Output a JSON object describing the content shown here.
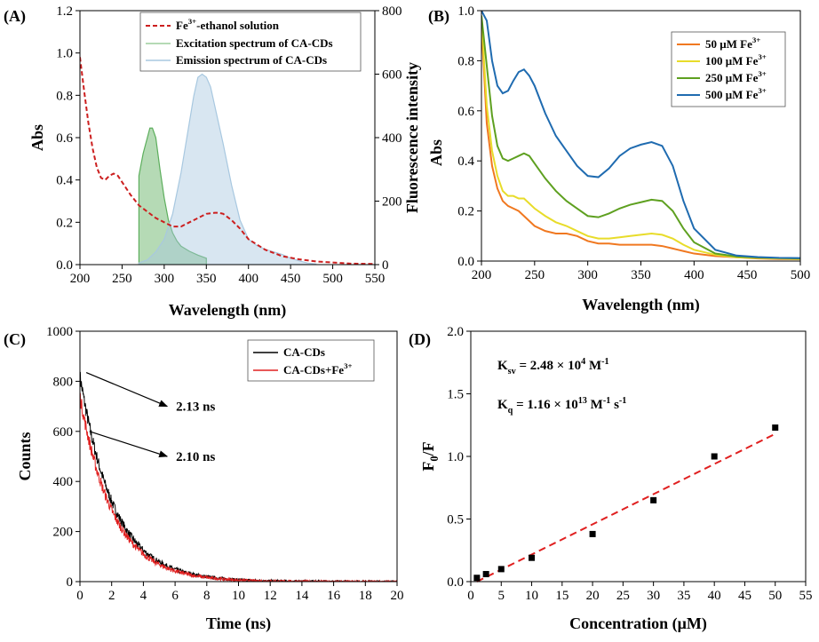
{
  "chart_data": [
    {
      "panel": "(A)",
      "type": "line",
      "xlabel": "Wavelength (nm)",
      "ylabel": "Abs",
      "y2label": "Fluorescence intensity",
      "xlim": [
        200,
        550
      ],
      "ylim": [
        0,
        1.2
      ],
      "y2lim": [
        0,
        800
      ],
      "xticks": [
        "200",
        "250",
        "300",
        "350",
        "400",
        "450",
        "500",
        "550"
      ],
      "yticks": [
        "0.0",
        "0.2",
        "0.4",
        "0.6",
        "0.8",
        "1.0",
        "1.2"
      ],
      "y2ticks": [
        "0",
        "200",
        "400",
        "600",
        "800"
      ],
      "legend_position": "top-right",
      "legend": [
        "Fe",
        "3+",
        "-ethanol solution",
        "Excitation spectrum of CA-CDs",
        "Emission spectrum of CA-CDs"
      ],
      "series": [
        {
          "axis": "left",
          "style": "dashed",
          "color": "#cc1f1f",
          "x": [
            200,
            205,
            210,
            215,
            220,
            225,
            230,
            235,
            240,
            245,
            250,
            255,
            260,
            270,
            280,
            290,
            300,
            310,
            320,
            330,
            340,
            350,
            360,
            365,
            370,
            380,
            390,
            400,
            420,
            440,
            460,
            480,
            500,
            520,
            550
          ],
          "y": [
            0.98,
            0.82,
            0.67,
            0.55,
            0.46,
            0.41,
            0.4,
            0.42,
            0.43,
            0.42,
            0.39,
            0.36,
            0.33,
            0.28,
            0.25,
            0.22,
            0.2,
            0.18,
            0.18,
            0.2,
            0.22,
            0.24,
            0.245,
            0.245,
            0.24,
            0.21,
            0.17,
            0.12,
            0.07,
            0.04,
            0.025,
            0.015,
            0.01,
            0.005,
            0.003
          ]
        },
        {
          "axis": "right",
          "style": "filled",
          "color": "#5cae5c",
          "x": [
            270,
            275,
            280,
            283,
            286,
            290,
            295,
            300,
            305,
            310,
            315,
            320,
            325,
            330,
            340,
            350
          ],
          "y": [
            280,
            350,
            400,
            430,
            430,
            400,
            300,
            210,
            140,
            100,
            75,
            58,
            50,
            42,
            30,
            20
          ]
        },
        {
          "axis": "right",
          "style": "filled",
          "color": "#a8c8e0",
          "x": [
            270,
            280,
            290,
            300,
            310,
            320,
            330,
            335,
            340,
            345,
            350,
            355,
            360,
            370,
            380,
            390,
            400,
            410,
            420,
            430,
            440,
            450,
            460,
            470,
            480
          ],
          "y": [
            5,
            15,
            40,
            80,
            160,
            290,
            450,
            530,
            590,
            600,
            590,
            560,
            500,
            380,
            250,
            140,
            80,
            60,
            48,
            40,
            32,
            20,
            12,
            5,
            2
          ]
        }
      ]
    },
    {
      "panel": "(B)",
      "type": "line",
      "xlabel": "Wavelength (nm)",
      "ylabel": "Abs",
      "xlim": [
        200,
        500
      ],
      "ylim": [
        0,
        1.0
      ],
      "xticks": [
        "200",
        "250",
        "300",
        "350",
        "400",
        "450",
        "500"
      ],
      "yticks": [
        "0.0",
        "0.2",
        "0.4",
        "0.6",
        "0.8",
        "1.0"
      ],
      "legend_position": "top-right",
      "x": [
        200,
        205,
        210,
        215,
        220,
        225,
        230,
        235,
        240,
        245,
        250,
        260,
        270,
        280,
        290,
        300,
        310,
        320,
        330,
        340,
        350,
        360,
        370,
        380,
        390,
        400,
        420,
        440,
        460,
        480,
        500
      ],
      "series": [
        {
          "name": "50 μM Fe",
          "sup": "3+",
          "color": "#f07820",
          "y": [
            0.95,
            0.55,
            0.38,
            0.29,
            0.24,
            0.22,
            0.21,
            0.2,
            0.18,
            0.16,
            0.14,
            0.12,
            0.11,
            0.11,
            0.1,
            0.08,
            0.07,
            0.07,
            0.065,
            0.065,
            0.065,
            0.065,
            0.06,
            0.05,
            0.04,
            0.03,
            0.02,
            0.015,
            0.01,
            0.008,
            0.007
          ]
        },
        {
          "name": "100 μM Fe",
          "sup": "3+",
          "color": "#e8dc2a",
          "y": [
            0.97,
            0.62,
            0.44,
            0.34,
            0.28,
            0.26,
            0.26,
            0.25,
            0.25,
            0.23,
            0.21,
            0.18,
            0.155,
            0.14,
            0.12,
            0.1,
            0.09,
            0.09,
            0.095,
            0.1,
            0.105,
            0.11,
            0.105,
            0.09,
            0.065,
            0.045,
            0.025,
            0.015,
            0.012,
            0.01,
            0.008
          ]
        },
        {
          "name": "250 μM Fe",
          "sup": "3+",
          "color": "#5ea020",
          "y": [
            0.98,
            0.78,
            0.58,
            0.46,
            0.41,
            0.4,
            0.41,
            0.42,
            0.43,
            0.42,
            0.39,
            0.33,
            0.28,
            0.24,
            0.21,
            0.18,
            0.175,
            0.19,
            0.21,
            0.225,
            0.235,
            0.245,
            0.24,
            0.2,
            0.13,
            0.075,
            0.03,
            0.018,
            0.014,
            0.012,
            0.01
          ]
        },
        {
          "name": "500 μM Fe",
          "sup": "3+",
          "color": "#1f6bb0",
          "y": [
            1.0,
            0.96,
            0.8,
            0.7,
            0.67,
            0.68,
            0.72,
            0.755,
            0.765,
            0.74,
            0.7,
            0.59,
            0.5,
            0.44,
            0.38,
            0.34,
            0.335,
            0.37,
            0.42,
            0.45,
            0.465,
            0.475,
            0.46,
            0.38,
            0.24,
            0.13,
            0.045,
            0.022,
            0.016,
            0.013,
            0.012
          ]
        }
      ]
    },
    {
      "panel": "(C)",
      "type": "line",
      "xlabel": "Time (ns)",
      "ylabel": "Counts",
      "xlim": [
        0,
        20
      ],
      "ylim": [
        0,
        1000
      ],
      "xticks": [
        "0",
        "2",
        "4",
        "6",
        "8",
        "10",
        "12",
        "14",
        "16",
        "18",
        "20"
      ],
      "yticks": [
        "0",
        "200",
        "400",
        "600",
        "800",
        "1000"
      ],
      "legend_position": "top-right",
      "series": [
        {
          "name": "CA-CDs",
          "color": "#000000",
          "peak": 820,
          "tau_ns": 2.13
        },
        {
          "name": "CA-CDs+Fe",
          "sup": "3+",
          "color": "#e02020",
          "peak": 740,
          "tau_ns": 2.1
        }
      ],
      "annotations": [
        {
          "text": "2.13 ns",
          "from": [
            0.4,
            835
          ],
          "to": [
            5.5,
            700
          ]
        },
        {
          "text": "2.10 ns",
          "from": [
            0.6,
            600
          ],
          "to": [
            5.5,
            500
          ]
        }
      ]
    },
    {
      "panel": "(D)",
      "type": "scatter",
      "xlabel": "Concentration (μM)",
      "ylabel_main": "F",
      "ylabel_sub": "0",
      "ylabel_tail": "/F",
      "xlim": [
        0,
        55
      ],
      "ylim": [
        0,
        2.0
      ],
      "xticks": [
        "0",
        "5",
        "10",
        "15",
        "20",
        "25",
        "30",
        "35",
        "40",
        "45",
        "50",
        "55"
      ],
      "yticks": [
        "0.0",
        "0.5",
        "1.0",
        "1.5",
        "2.0"
      ],
      "x": [
        1,
        2.5,
        5,
        10,
        20,
        30,
        40,
        50
      ],
      "y": [
        0.03,
        0.06,
        0.1,
        0.19,
        0.38,
        0.65,
        1.0,
        1.23
      ],
      "fit": {
        "x": [
          1,
          50
        ],
        "y": [
          0.0,
          1.18
        ],
        "color": "#e02020",
        "style": "dashed"
      },
      "text": [
        {
          "main": "K",
          "sub": "sv",
          "body": " = 2.48 × 10",
          "sup": "4",
          "unit": " M",
          "unit_sup": "-1"
        },
        {
          "main": "K",
          "sub": "q",
          "body": " = 1.16 × 10",
          "sup": "13",
          "unit": " M",
          "unit_sup": "-1",
          "unit2": " s",
          "unit2_sup": "-1"
        }
      ]
    }
  ]
}
